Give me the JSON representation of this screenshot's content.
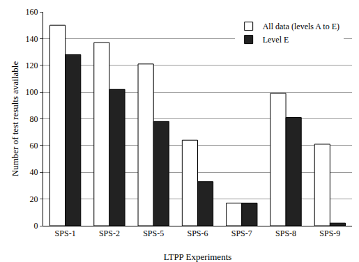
{
  "chart_data": {
    "type": "bar",
    "x_label": "LTPP Experiments",
    "y_label": "Number of test results available",
    "categories": [
      "SPS-1",
      "SPS-2",
      "SPS-5",
      "SPS-6",
      "SPS-7",
      "SPS-8",
      "SPS-9"
    ],
    "series": [
      {
        "name": "All data (levels A to E)",
        "color": "#ffffff",
        "values": [
          150,
          137,
          121,
          64,
          17,
          99,
          61
        ]
      },
      {
        "name": "Level E",
        "color": "#222222",
        "values": [
          128,
          102,
          78,
          33,
          17,
          81,
          2
        ]
      }
    ],
    "ylim": [
      0,
      160
    ],
    "yticks": [
      0,
      20,
      40,
      60,
      80,
      100,
      120,
      140,
      160
    ],
    "grid": true,
    "legend": "upper right"
  }
}
